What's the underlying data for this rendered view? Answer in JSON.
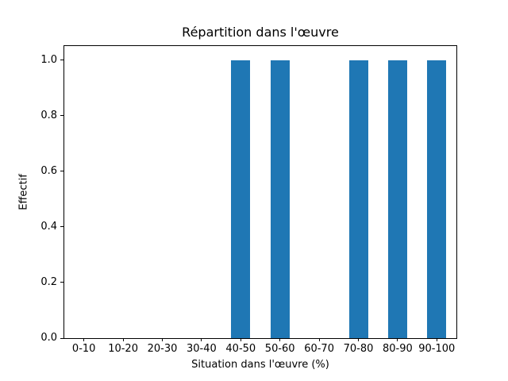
{
  "chart_data": {
    "type": "bar",
    "title": "Répartition dans l'œuvre",
    "xlabel": "Situation dans l'œuvre (%)",
    "ylabel": "Effectif",
    "categories": [
      "0-10",
      "10-20",
      "20-30",
      "30-40",
      "40-50",
      "50-60",
      "60-70",
      "70-80",
      "80-90",
      "90-100"
    ],
    "values": [
      0,
      0,
      0,
      0,
      1,
      1,
      0,
      1,
      1,
      1
    ],
    "yticks": [
      0.0,
      0.2,
      0.4,
      0.6,
      0.8,
      1.0
    ],
    "ytick_labels": [
      "0.0",
      "0.2",
      "0.4",
      "0.6",
      "0.8",
      "1.0"
    ],
    "ylim": [
      0,
      1.05
    ],
    "grid": false,
    "legend_position": "none",
    "bar_color": "#1f77b4",
    "background_color": "#ffffff",
    "axis_color": "#000000"
  }
}
